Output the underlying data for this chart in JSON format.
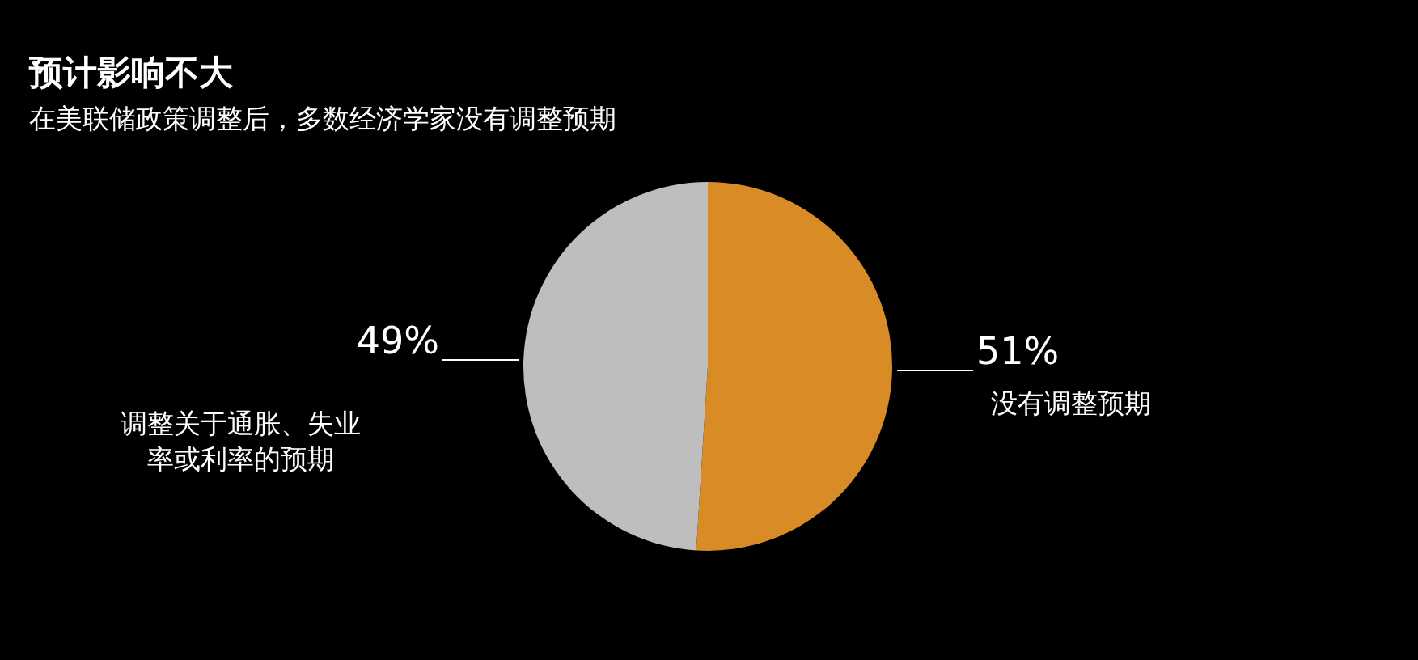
{
  "chart_data": {
    "type": "pie",
    "title": "预计影响不大",
    "subtitle": "在美联储政策调整后，多数经济学家没有调整预期",
    "categories": [
      "没有调整预期",
      "调整关于通胀、失业率或利率的预期"
    ],
    "values": [
      51,
      49
    ],
    "colors": [
      "#d98b26",
      "#bebebe"
    ],
    "value_labels": [
      "51%",
      "49%"
    ]
  }
}
